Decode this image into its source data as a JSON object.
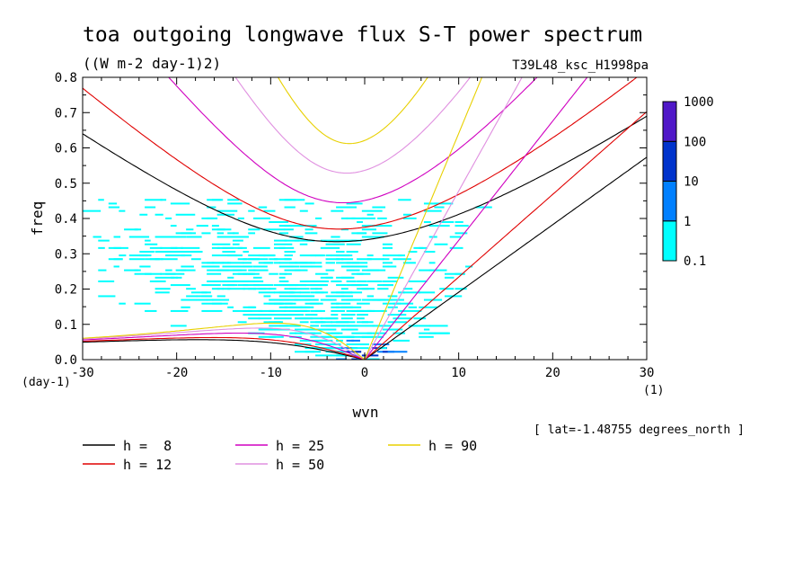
{
  "chart_data": {
    "type": "heatmap",
    "title": "toa outgoing longwave flux S-T power spectrum",
    "subtitle": "((W m-2 day-1)2)",
    "run_label": "T39L48_ksc_H1998pa",
    "xlabel": "wvn",
    "ylabel": "freq",
    "x_unit": "(1)",
    "y_unit": "(day-1)",
    "xlim": [
      -30,
      30
    ],
    "ylim": [
      0,
      0.8
    ],
    "x_ticks": [
      -30,
      -20,
      -10,
      0,
      10,
      20,
      30
    ],
    "x_tick_labels": [
      "-30",
      "-20",
      "-10",
      "0",
      "10",
      "20",
      "30"
    ],
    "y_ticks": [
      0,
      0.1,
      0.2,
      0.3,
      0.4,
      0.5,
      0.6,
      0.7,
      0.8
    ],
    "y_tick_labels": [
      "0.0",
      "0.1",
      "0.2",
      "0.3",
      "0.4",
      "0.5",
      "0.6",
      "0.7",
      "0.8"
    ],
    "note": "[ lat=-1.48755 degrees_north ]",
    "colorbar": {
      "labels": [
        "0.1",
        "1",
        "10",
        "100",
        "1000"
      ],
      "levels": [
        0.1,
        1,
        10,
        100,
        1000
      ],
      "colors": [
        "#00ffff",
        "#0080ff",
        "#0033cc",
        "#5018c8"
      ]
    },
    "series": [
      {
        "name": "h =  8",
        "h": 8,
        "color": "#000000"
      },
      {
        "name": "h = 12",
        "h": 12,
        "color": "#e00000"
      },
      {
        "name": "h = 25",
        "h": 25,
        "color": "#d000c0"
      },
      {
        "name": "h = 50",
        "h": 50,
        "color": "#e090e0"
      },
      {
        "name": "h = 90",
        "h": 90,
        "color": "#e8d000"
      }
    ]
  }
}
